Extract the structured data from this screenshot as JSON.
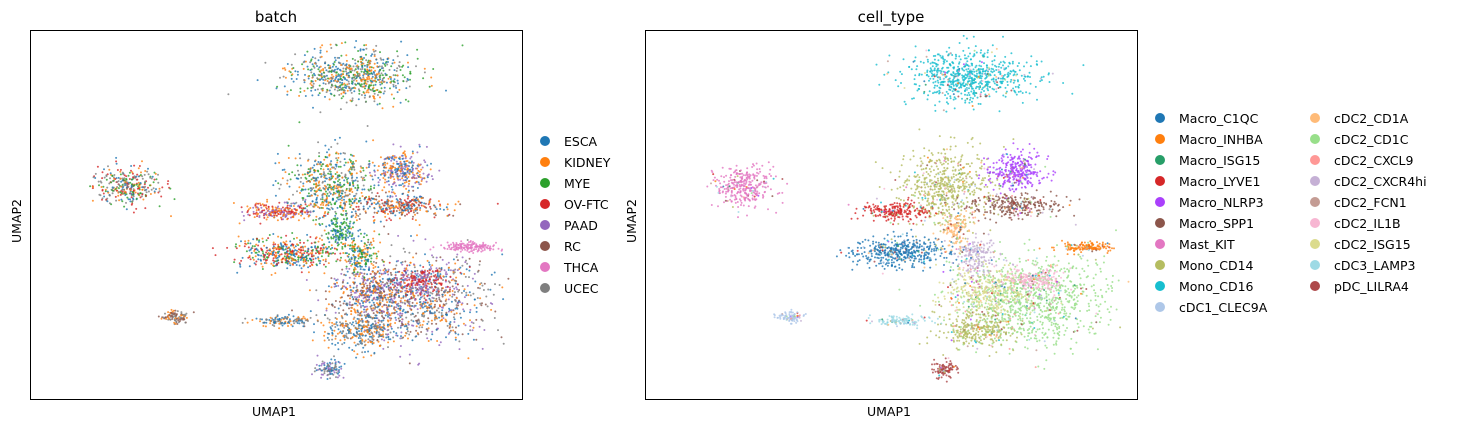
{
  "chart_data": [
    {
      "type": "scatter",
      "title": "batch",
      "xlabel": "UMAP1",
      "ylabel": "UMAP2",
      "legend_position": "right",
      "grid": false,
      "series": [
        {
          "name": "ESCA",
          "color": "#1f77b4"
        },
        {
          "name": "KIDNEY",
          "color": "#ff7f0e"
        },
        {
          "name": "MYE",
          "color": "#2ca02c"
        },
        {
          "name": "OV-FTC",
          "color": "#d62728"
        },
        {
          "name": "PAAD",
          "color": "#9467bd"
        },
        {
          "name": "RC",
          "color": "#8c564b"
        },
        {
          "name": "THCA",
          "color": "#e377c2"
        },
        {
          "name": "UCEC",
          "color": "#7f7f7f"
        }
      ]
    },
    {
      "type": "scatter",
      "title": "cell_type",
      "xlabel": "UMAP1",
      "ylabel": "UMAP2",
      "legend_position": "right",
      "grid": false,
      "series": [
        {
          "name": "Macro_C1QC",
          "color": "#1f77b4"
        },
        {
          "name": "Macro_INHBA",
          "color": "#ff7f0e"
        },
        {
          "name": "Macro_ISG15",
          "color": "#279e68"
        },
        {
          "name": "Macro_LYVE1",
          "color": "#d62728"
        },
        {
          "name": "Macro_NLRP3",
          "color": "#aa40fc"
        },
        {
          "name": "Macro_SPP1",
          "color": "#8c564b"
        },
        {
          "name": "Mast_KIT",
          "color": "#e377c2"
        },
        {
          "name": "Mono_CD14",
          "color": "#b5bd61"
        },
        {
          "name": "Mono_CD16",
          "color": "#17becf"
        },
        {
          "name": "cDC1_CLEC9A",
          "color": "#aec7e8"
        },
        {
          "name": "cDC2_CD1A",
          "color": "#ffbb78"
        },
        {
          "name": "cDC2_CD1C",
          "color": "#98df8a"
        },
        {
          "name": "cDC2_CXCL9",
          "color": "#ff9896"
        },
        {
          "name": "cDC2_CXCR4hi",
          "color": "#c5b0d5"
        },
        {
          "name": "cDC2_FCN1",
          "color": "#c49c94"
        },
        {
          "name": "cDC2_IL1B",
          "color": "#f7b6d2"
        },
        {
          "name": "cDC2_ISG15",
          "color": "#dbdb8d"
        },
        {
          "name": "cDC3_LAMP3",
          "color": "#9edae5"
        },
        {
          "name": "pDC_LILRA4",
          "color": "#ad494a"
        }
      ]
    }
  ]
}
